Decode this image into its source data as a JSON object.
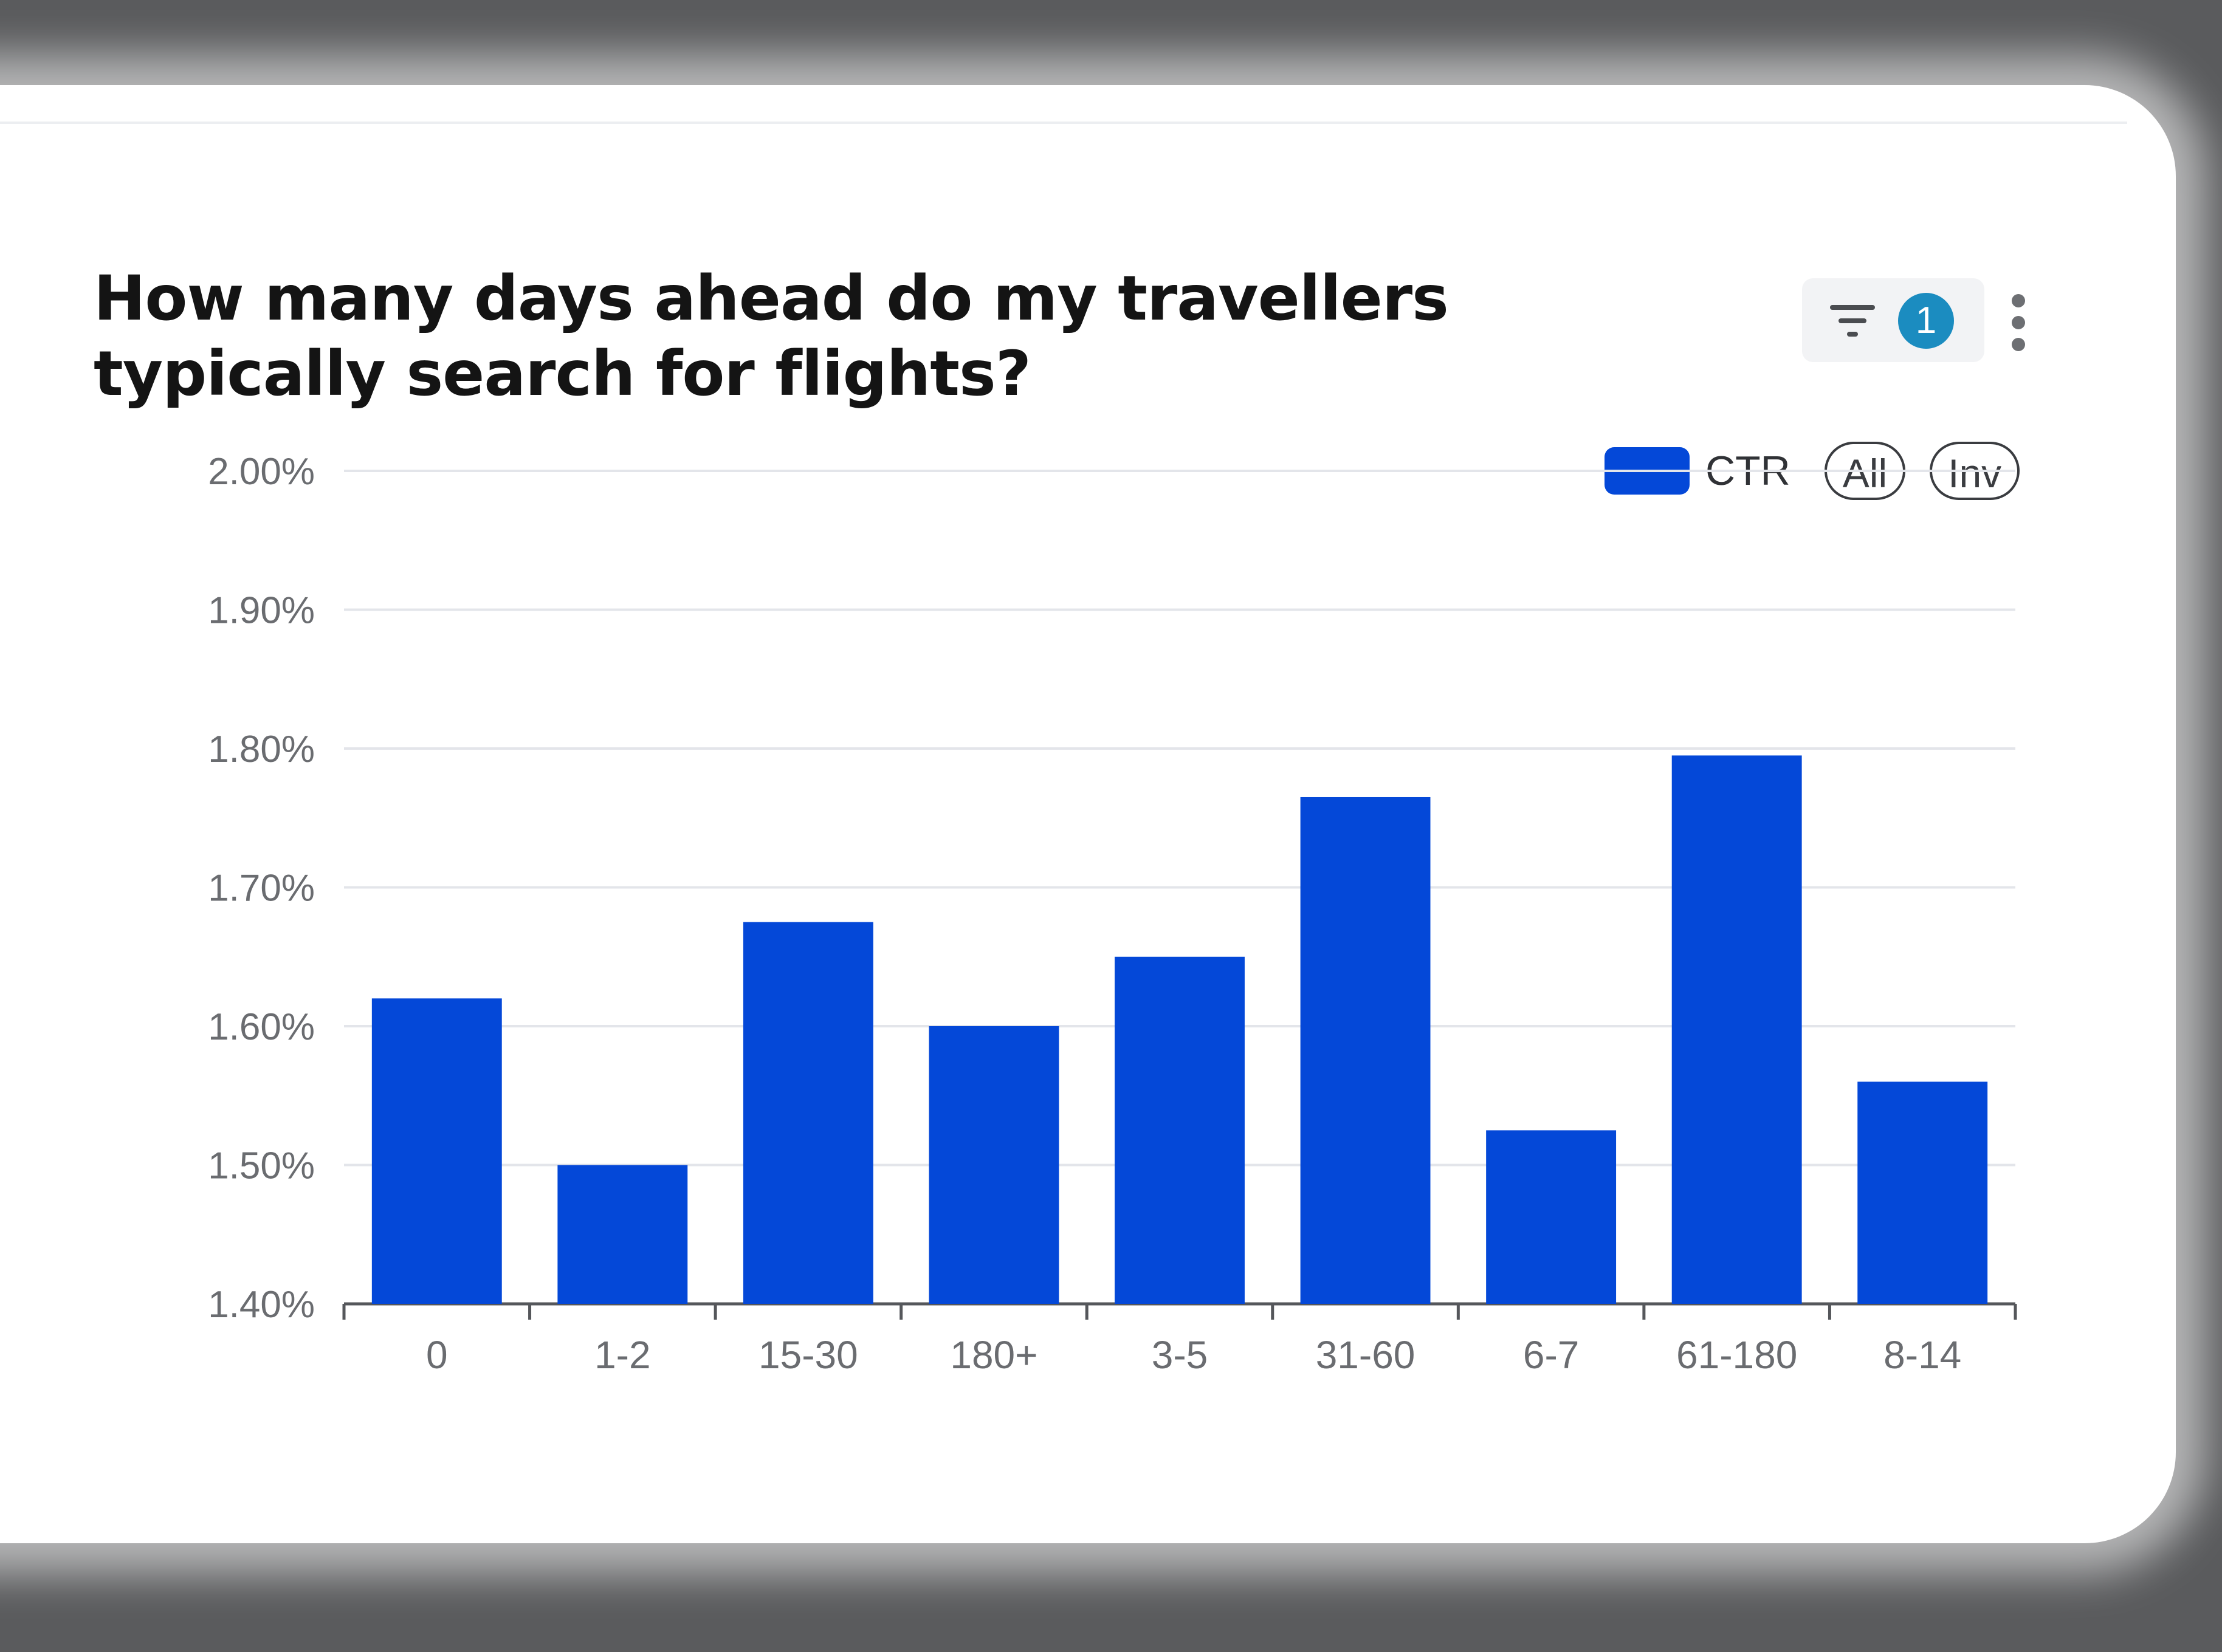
{
  "header": {
    "title": "How many days ahead do my travellers typically search for flights?",
    "filter_count": "1"
  },
  "legend": {
    "series_label": "CTR",
    "all_label": "All",
    "inv_label": "Inv"
  },
  "colors": {
    "bar": "#0448d8",
    "badge": "#1b8cc0",
    "grid": "#e3e5ea",
    "background": "#5a5b5d"
  },
  "icons": [
    "filter-icon",
    "kebab-menu-icon"
  ],
  "chart_data": {
    "type": "bar",
    "title": "How many days ahead do my travellers typically search for flights?",
    "xlabel": "",
    "ylabel": "",
    "categories": [
      "0",
      "1-2",
      "15-30",
      "180+",
      "3-5",
      "31-60",
      "6-7",
      "61-180",
      "8-14"
    ],
    "series": [
      {
        "name": "CTR",
        "values": [
          1.62,
          1.5,
          1.675,
          1.6,
          1.65,
          1.765,
          1.525,
          1.795,
          1.56
        ]
      }
    ],
    "ylim": [
      1.4,
      2.0
    ],
    "yticks": [
      1.4,
      1.5,
      1.6,
      1.7,
      1.8,
      1.9,
      2.0
    ],
    "ytick_labels": [
      "1.40%",
      "1.50%",
      "1.60%",
      "1.70%",
      "1.80%",
      "1.90%",
      "2.00%"
    ],
    "grid": true,
    "legend_position": "top-right"
  }
}
